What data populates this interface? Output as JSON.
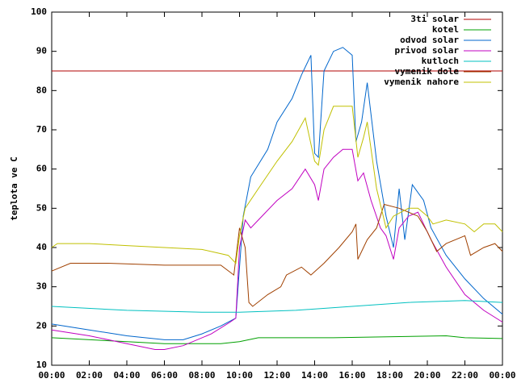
{
  "chart_data": {
    "type": "line",
    "y_label": "teplota ve C",
    "xlim": [
      0,
      24
    ],
    "xticks": [
      {
        "value": 0,
        "label": "00:00"
      },
      {
        "value": 2,
        "label": "02:00"
      },
      {
        "value": 4,
        "label": "04:00"
      },
      {
        "value": 6,
        "label": "06:00"
      },
      {
        "value": 8,
        "label": "08:00"
      },
      {
        "value": 10,
        "label": "10:00"
      },
      {
        "value": 12,
        "label": "12:00"
      },
      {
        "value": 14,
        "label": "14:00"
      },
      {
        "value": 16,
        "label": "16:00"
      },
      {
        "value": 18,
        "label": "18:00"
      },
      {
        "value": 20,
        "label": "20:00"
      },
      {
        "value": 22,
        "label": "22:00"
      },
      {
        "value": 24,
        "label": "00:00"
      }
    ],
    "ylim": [
      10,
      100
    ],
    "yticks": [
      10,
      20,
      30,
      40,
      50,
      60,
      70,
      80,
      90,
      100
    ],
    "legend": "top-right",
    "series": [
      {
        "name": "3ti solar",
        "color": "#b00000",
        "x": [
          0,
          24
        ],
        "values": [
          85,
          85
        ]
      },
      {
        "name": "kotel",
        "color": "#00a000",
        "x": [
          0,
          4,
          6,
          9,
          10,
          11,
          15,
          21,
          22,
          24
        ],
        "values": [
          17,
          16,
          15.5,
          15.5,
          16,
          17,
          17,
          17.5,
          17,
          16.8
        ]
      },
      {
        "name": "odvod solar",
        "color": "#0066cc",
        "x": [
          0,
          2,
          4,
          6,
          7,
          8,
          9,
          9.8,
          10.2,
          10.6,
          11.5,
          12,
          12.8,
          13.3,
          13.8,
          14,
          14.2,
          14.5,
          15,
          15.5,
          16,
          16.2,
          16.5,
          16.8,
          17.3,
          17.8,
          18.2,
          18.5,
          18.8,
          19.2,
          19.8,
          20.2,
          21,
          22,
          23,
          24
        ],
        "values": [
          20.5,
          19,
          17.5,
          16.5,
          16.5,
          18,
          20,
          22,
          48,
          58,
          65,
          72,
          78,
          84,
          89,
          64,
          63,
          85,
          90,
          91,
          89,
          67,
          72,
          82,
          62,
          48,
          40,
          55,
          42,
          56,
          52,
          45,
          38,
          32,
          27,
          23
        ]
      },
      {
        "name": "privod solar",
        "color": "#c000c0",
        "x": [
          0,
          2,
          4,
          5.5,
          6,
          7,
          8.5,
          9.5,
          9.8,
          10,
          10.3,
          10.6,
          11,
          12,
          12.8,
          13.5,
          14,
          14.2,
          14.5,
          15,
          15.5,
          16,
          16.3,
          16.6,
          17,
          17.5,
          17.8,
          18.2,
          18.5,
          19,
          19.5,
          20.2,
          21,
          22,
          23,
          24
        ],
        "values": [
          19,
          17.5,
          15.5,
          14,
          14,
          15,
          18,
          21,
          22,
          40,
          47,
          45,
          47,
          52,
          55,
          60,
          56,
          52,
          60,
          63,
          65,
          65,
          57,
          59,
          52,
          45,
          43,
          37,
          45,
          48,
          49,
          42,
          35,
          28,
          24,
          21
        ]
      },
      {
        "name": "kutloch",
        "color": "#00c0c0",
        "x": [
          0,
          4,
          8,
          10,
          13,
          16,
          19,
          22,
          24
        ],
        "values": [
          25,
          24,
          23.5,
          23.5,
          24,
          25,
          26,
          26.5,
          26
        ]
      },
      {
        "name": "vymenik dole",
        "color": "#a04000",
        "x": [
          0,
          1,
          3,
          6,
          8,
          9,
          9.7,
          10,
          10.3,
          10.5,
          10.7,
          11.5,
          12.2,
          12.5,
          13.3,
          13.8,
          14.5,
          15.3,
          16,
          16.2,
          16.3,
          16.8,
          17.3,
          17.7,
          18.5,
          19.5,
          20,
          20.5,
          21,
          22,
          22.3,
          23,
          23.6,
          24
        ],
        "values": [
          34,
          36,
          36,
          35.5,
          35.5,
          35.5,
          33,
          45,
          40,
          26,
          25,
          28,
          30,
          33,
          35,
          33,
          36,
          40,
          44,
          46,
          37,
          42,
          45,
          51,
          50,
          48,
          44,
          39,
          41,
          43,
          38,
          40,
          41,
          39
        ]
      },
      {
        "name": "vymenik nahore",
        "color": "#c0c000",
        "x": [
          0,
          0.3,
          2,
          4,
          6,
          8,
          9.4,
          9.8,
          10,
          10.3,
          11,
          12,
          12.8,
          13.5,
          14,
          14.2,
          14.5,
          15,
          16,
          16.3,
          16.6,
          16.8,
          17.3,
          17.8,
          18.2,
          19,
          19.5,
          20,
          20.3,
          21,
          22,
          22.5,
          23,
          23.6,
          24
        ],
        "values": [
          40,
          41,
          41,
          40.5,
          40,
          39.5,
          38,
          36,
          43,
          50,
          55,
          62,
          67,
          73,
          62,
          61,
          70,
          76,
          76,
          63,
          68,
          72,
          55,
          45,
          48,
          50,
          50,
          48,
          46,
          47,
          46,
          44,
          46,
          46,
          44
        ]
      }
    ]
  }
}
